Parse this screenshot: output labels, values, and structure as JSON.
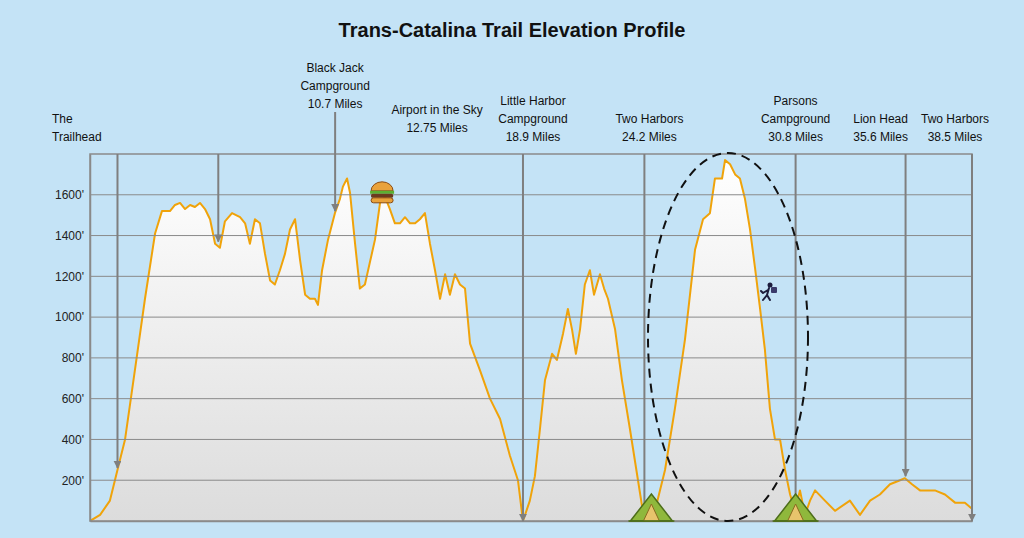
{
  "chart_data": {
    "type": "area",
    "title": "Trans-Catalina Trail Elevation Profile",
    "color": "#f0a30a",
    "grid": true,
    "tick_labels": "y",
    "xlim": [
      0,
      38.5
    ],
    "ylim": [
      0,
      1800
    ],
    "yticks": [
      {
        "value": 200,
        "label": "200'"
      },
      {
        "value": 400,
        "label": "400'"
      },
      {
        "value": 600,
        "label": "600'"
      },
      {
        "value": 800,
        "label": "800'"
      },
      {
        "value": 1000,
        "label": "1000'"
      },
      {
        "value": 1200,
        "label": "1200'"
      },
      {
        "value": 1400,
        "label": "1400'"
      },
      {
        "value": 1600,
        "label": "1600'"
      }
    ],
    "x": [
      0,
      0.44,
      0.87,
      1.22,
      1.53,
      1.96,
      2.4,
      2.84,
      3.14,
      3.49,
      3.71,
      3.93,
      4.15,
      4.37,
      4.58,
      4.8,
      5.02,
      5.24,
      5.46,
      5.67,
      5.89,
      6.2,
      6.55,
      6.77,
      6.98,
      7.2,
      7.42,
      7.64,
      7.86,
      8.07,
      8.29,
      8.51,
      8.73,
      8.95,
      9.17,
      9.39,
      9.6,
      9.82,
      9.95,
      10.13,
      10.39,
      10.69,
      10.91,
      11.04,
      11.22,
      11.35,
      11.57,
      11.78,
      12.0,
      12.22,
      12.44,
      12.66,
      12.88,
      13.09,
      13.31,
      13.53,
      13.75,
      13.97,
      14.19,
      14.4,
      14.62,
      14.84,
      15.06,
      15.28,
      15.5,
      15.71,
      15.93,
      16.15,
      16.37,
      16.59,
      17.02,
      17.46,
      17.9,
      18.33,
      18.68,
      18.9,
      19.2,
      19.42,
      19.64,
      19.86,
      20.17,
      20.38,
      20.65,
      20.86,
      21.04,
      21.21,
      21.39,
      21.6,
      21.82,
      22.0,
      22.13,
      22.26,
      22.44,
      22.61,
      22.92,
      23.22,
      23.57,
      23.92,
      24.2,
      24.66,
      25.1,
      25.53,
      25.97,
      26.41,
      26.76,
      27.06,
      27.28,
      27.59,
      27.72,
      27.94,
      28.16,
      28.37,
      28.59,
      28.81,
      29.03,
      29.25,
      29.46,
      29.68,
      29.9,
      30.12,
      30.34,
      30.56,
      30.77,
      30.99,
      31.21,
      31.43,
      31.65,
      32.08,
      32.52,
      33.17,
      33.61,
      34.05,
      34.48,
      34.92,
      35.36,
      35.57,
      35.88,
      36.23,
      36.88,
      37.32,
      37.76,
      38.19,
      38.5
    ],
    "values": [
      0,
      30,
      100,
      260,
      400,
      740,
      1090,
      1410,
      1520,
      1520,
      1550,
      1560,
      1530,
      1550,
      1540,
      1560,
      1530,
      1480,
      1360,
      1340,
      1470,
      1510,
      1490,
      1460,
      1360,
      1480,
      1460,
      1310,
      1180,
      1160,
      1230,
      1310,
      1430,
      1480,
      1280,
      1110,
      1090,
      1090,
      1060,
      1230,
      1380,
      1510,
      1580,
      1640,
      1680,
      1610,
      1360,
      1140,
      1160,
      1270,
      1380,
      1560,
      1590,
      1530,
      1460,
      1460,
      1490,
      1460,
      1460,
      1480,
      1510,
      1360,
      1230,
      1090,
      1210,
      1110,
      1210,
      1160,
      1140,
      870,
      740,
      600,
      500,
      320,
      200,
      0,
      100,
      220,
      450,
      690,
      820,
      790,
      920,
      1040,
      940,
      820,
      940,
      1160,
      1230,
      1110,
      1160,
      1210,
      1140,
      1090,
      940,
      690,
      450,
      200,
      0,
      50,
      250,
      550,
      890,
      1330,
      1480,
      1510,
      1680,
      1680,
      1770,
      1750,
      1700,
      1680,
      1580,
      1430,
      1240,
      1040,
      840,
      550,
      400,
      400,
      250,
      130,
      50,
      150,
      30,
      100,
      150,
      100,
      50,
      100,
      30,
      100,
      130,
      180,
      200,
      210,
      180,
      150,
      150,
      130,
      90,
      90,
      60
    ],
    "annotations": [
      {
        "label": [
          "The",
          "Trailhead"
        ],
        "x": 1.2,
        "y": 260
      },
      {
        "x": 5.6,
        "y": 1370
      },
      {
        "label": [
          "Black Jack",
          "Campground",
          "10.7 Miles"
        ],
        "x": 10.7,
        "y": 1520
      },
      {
        "label": [
          "Airport in the Sky",
          "12.75 Miles"
        ],
        "x": 12.75,
        "y": 1590
      },
      {
        "label": [
          "Little Harbor",
          "Campground",
          "18.9 Miles"
        ],
        "x": 18.9,
        "y": 0
      },
      {
        "label": [
          "Two Harbors",
          "24.2 Miles"
        ],
        "x": 24.2,
        "y": 0
      },
      {
        "label": [
          "Parsons",
          "Campground",
          "30.8 Miles"
        ],
        "x": 30.8,
        "y": 0
      },
      {
        "label": [
          "Lion Head",
          "35.6 Miles"
        ],
        "x": 35.6,
        "y": 220
      },
      {
        "label": [
          "Two Harbors",
          "38.5 Miles"
        ],
        "x": 38.5,
        "y": 0
      }
    ]
  }
}
